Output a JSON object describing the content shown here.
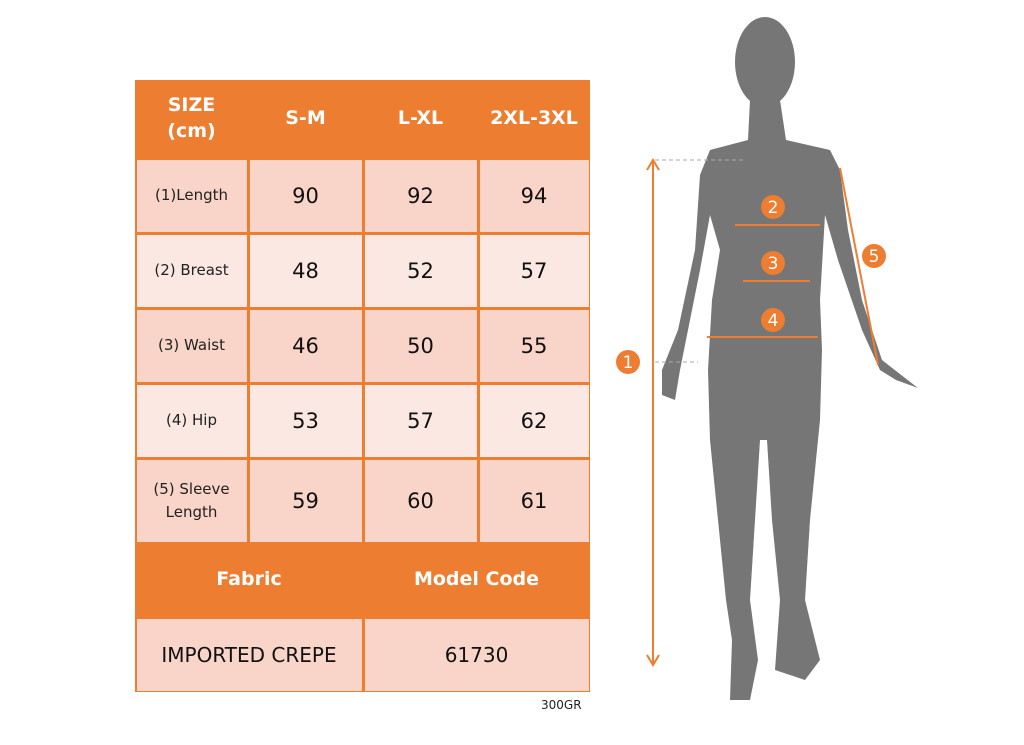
{
  "table": {
    "header": [
      "SIZE\n(cm)",
      "S-M",
      "L-XL",
      "2XL-3XL"
    ],
    "rows": [
      {
        "label": "(1)Length",
        "values": [
          "90",
          "92",
          "94"
        ]
      },
      {
        "label": "(2) Breast",
        "values": [
          "48",
          "52",
          "57"
        ]
      },
      {
        "label": "(3) Waist",
        "values": [
          "46",
          "50",
          "55"
        ]
      },
      {
        "label": "(4) Hip",
        "values": [
          "53",
          "57",
          "62"
        ]
      },
      {
        "label": "(5) Sleeve Length",
        "values": [
          "59",
          "60",
          "61"
        ]
      }
    ],
    "footer_headers": [
      "Fabric",
      "Model Code"
    ],
    "footer_values": [
      "IMPORTED CREPE",
      "61730"
    ]
  },
  "note": "300GR",
  "figure": {
    "markers": [
      "1",
      "2",
      "3",
      "4",
      "5"
    ]
  },
  "colors": {
    "accent": "#ed7d31",
    "row_dark": "#f8d5c8",
    "row_light": "#fbe8e2",
    "silhouette": "#767676"
  }
}
